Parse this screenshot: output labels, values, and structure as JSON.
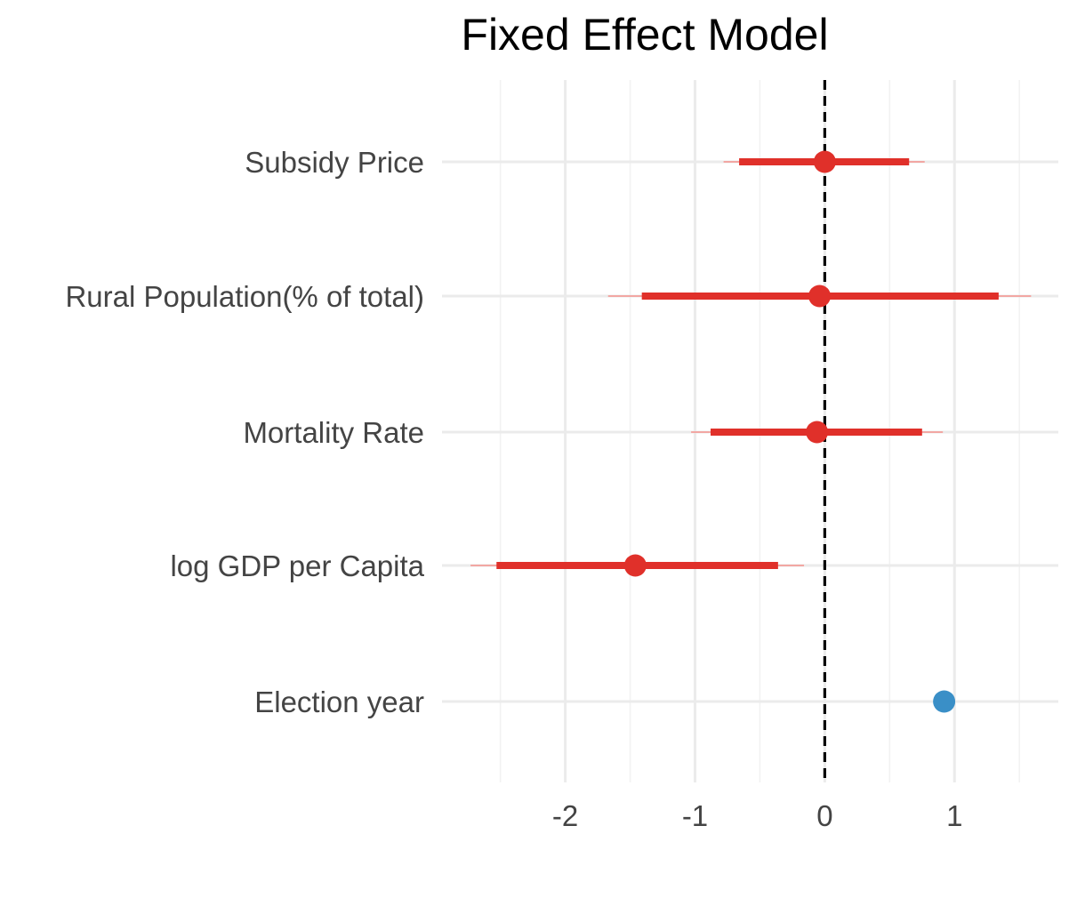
{
  "chart_data": {
    "type": "coefficient-plot",
    "title": "Fixed Effect Model",
    "xlabel": "",
    "ylabel": "",
    "xlim": [
      -2.95,
      1.8
    ],
    "x_ticks": [
      -2,
      -1,
      0,
      1
    ],
    "x_tick_labels": [
      "-2",
      "-1",
      "0",
      "1"
    ],
    "reference_line": 0,
    "grid": true,
    "legend": "none",
    "colors": {
      "significant": "#e0302a",
      "inner_interval": "#e0302a",
      "outer_interval": "#f2a7a3",
      "highlight": "#3a8fc7",
      "reference": "#000000"
    },
    "terms": [
      {
        "label": "Subsidy Price",
        "estimate": 0.0,
        "inner": [
          -0.66,
          0.65
        ],
        "outer": [
          -0.78,
          0.77
        ],
        "color": "#e0302a"
      },
      {
        "label": "Rural Population(% of total)",
        "estimate": -0.04,
        "inner": [
          -1.41,
          1.34
        ],
        "outer": [
          -1.67,
          1.59
        ],
        "color": "#e0302a"
      },
      {
        "label": "Mortality Rate",
        "estimate": -0.06,
        "inner": [
          -0.88,
          0.75
        ],
        "outer": [
          -1.03,
          0.91
        ],
        "color": "#e0302a"
      },
      {
        "label": "log GDP per Capita",
        "estimate": -1.46,
        "inner": [
          -2.53,
          -0.36
        ],
        "outer": [
          -2.73,
          -0.16
        ],
        "color": "#e0302a"
      },
      {
        "label": "Election year",
        "estimate": 0.92,
        "inner": [
          0.92,
          0.92
        ],
        "outer": [
          0.92,
          0.92
        ],
        "color": "#3a8fc7"
      }
    ]
  }
}
